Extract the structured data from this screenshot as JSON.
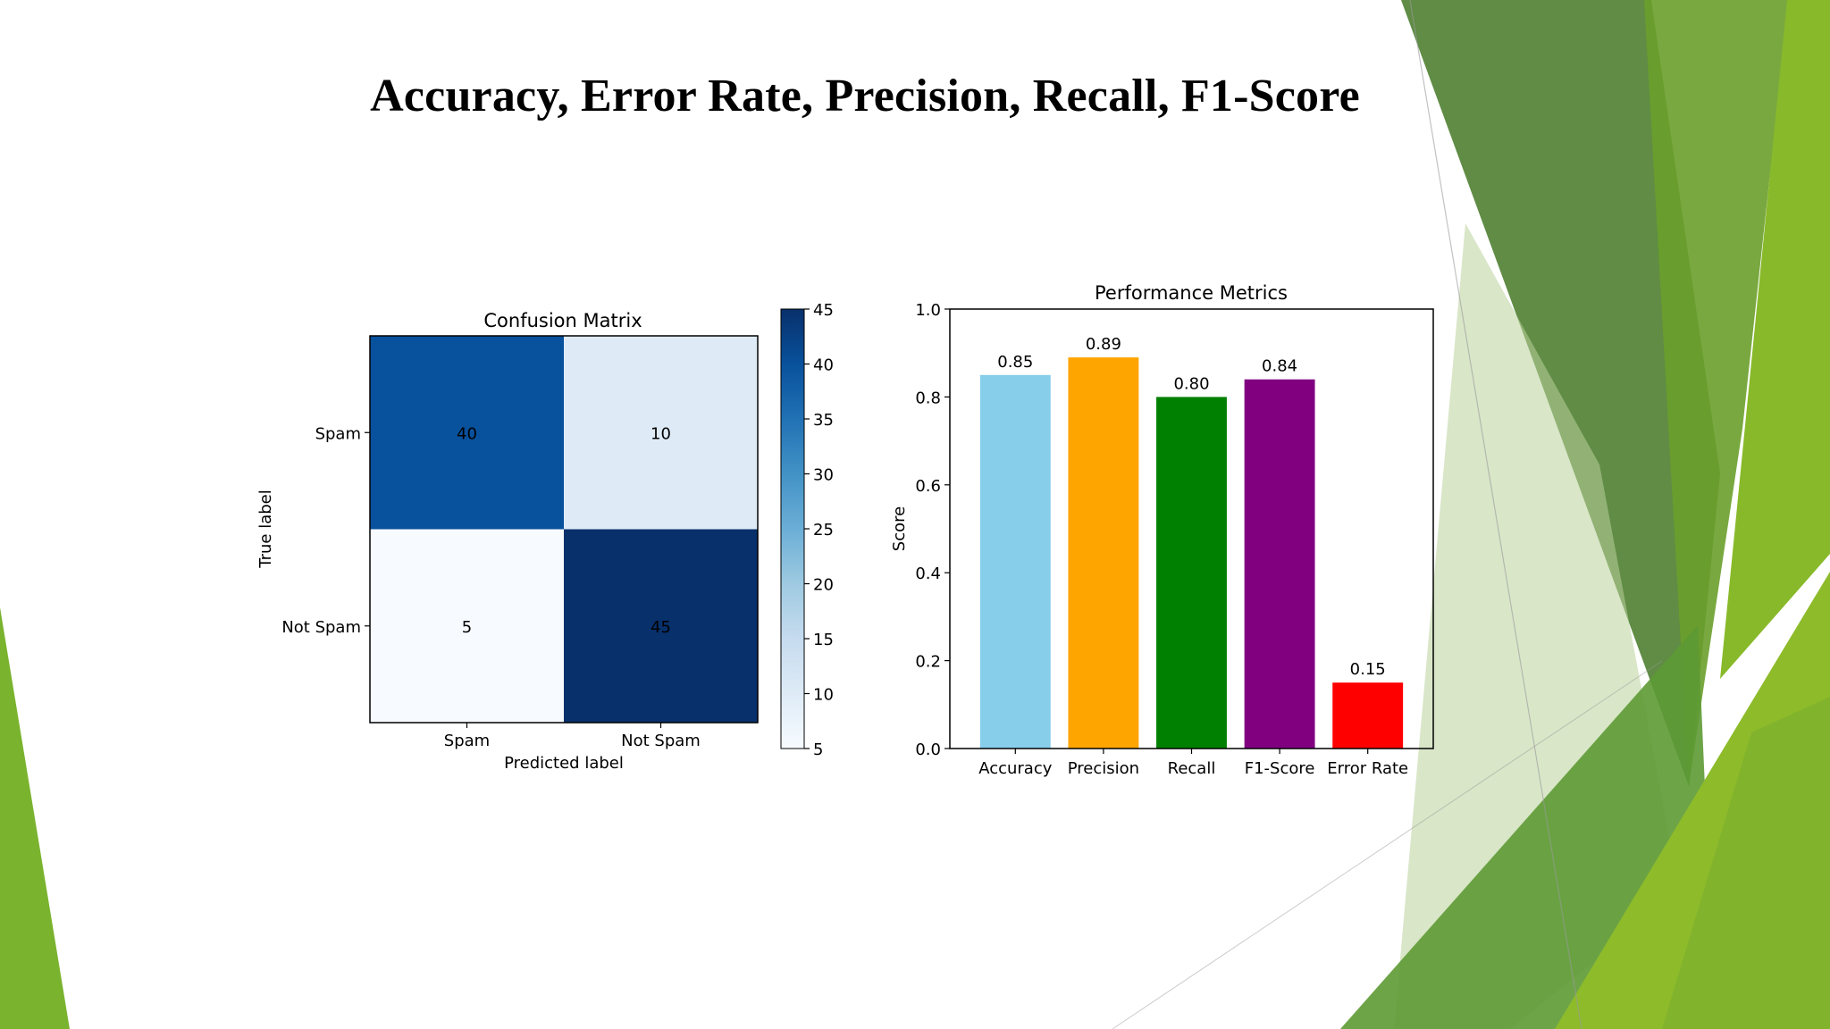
{
  "slide": {
    "title": "Accuracy, Error Rate, Precision, Recall, F1-Score"
  },
  "colors": {
    "theme_green_dark": "#5a8a3a",
    "theme_green": "#7ab32e",
    "theme_green_light": "#c9dcae"
  },
  "chart_data": [
    {
      "type": "heatmap",
      "title": "Confusion Matrix",
      "xlabel": "Predicted label",
      "ylabel": "True label",
      "x_categories": [
        "Spam",
        "Not Spam"
      ],
      "y_categories": [
        "Spam",
        "Not Spam"
      ],
      "values": [
        [
          40,
          10
        ],
        [
          5,
          45
        ]
      ],
      "colormap": "Blues",
      "colorbar": {
        "min": 5,
        "max": 45,
        "ticks": [
          5,
          10,
          15,
          20,
          25,
          30,
          35,
          40,
          45
        ]
      }
    },
    {
      "type": "bar",
      "title": "Performance Metrics",
      "xlabel": "",
      "ylabel": "Score",
      "categories": [
        "Accuracy",
        "Precision",
        "Recall",
        "F1-Score",
        "Error Rate"
      ],
      "values": [
        0.85,
        0.89,
        0.8,
        0.84,
        0.15
      ],
      "data_labels": [
        "0.85",
        "0.89",
        "0.80",
        "0.84",
        "0.15"
      ],
      "colors": [
        "#87ceeb",
        "#ffa500",
        "#008000",
        "#800080",
        "#ff0000"
      ],
      "ylim": [
        0.0,
        1.0
      ],
      "yticks": [
        "0.0",
        "0.2",
        "0.4",
        "0.6",
        "0.8",
        "1.0"
      ],
      "grid": false
    }
  ]
}
